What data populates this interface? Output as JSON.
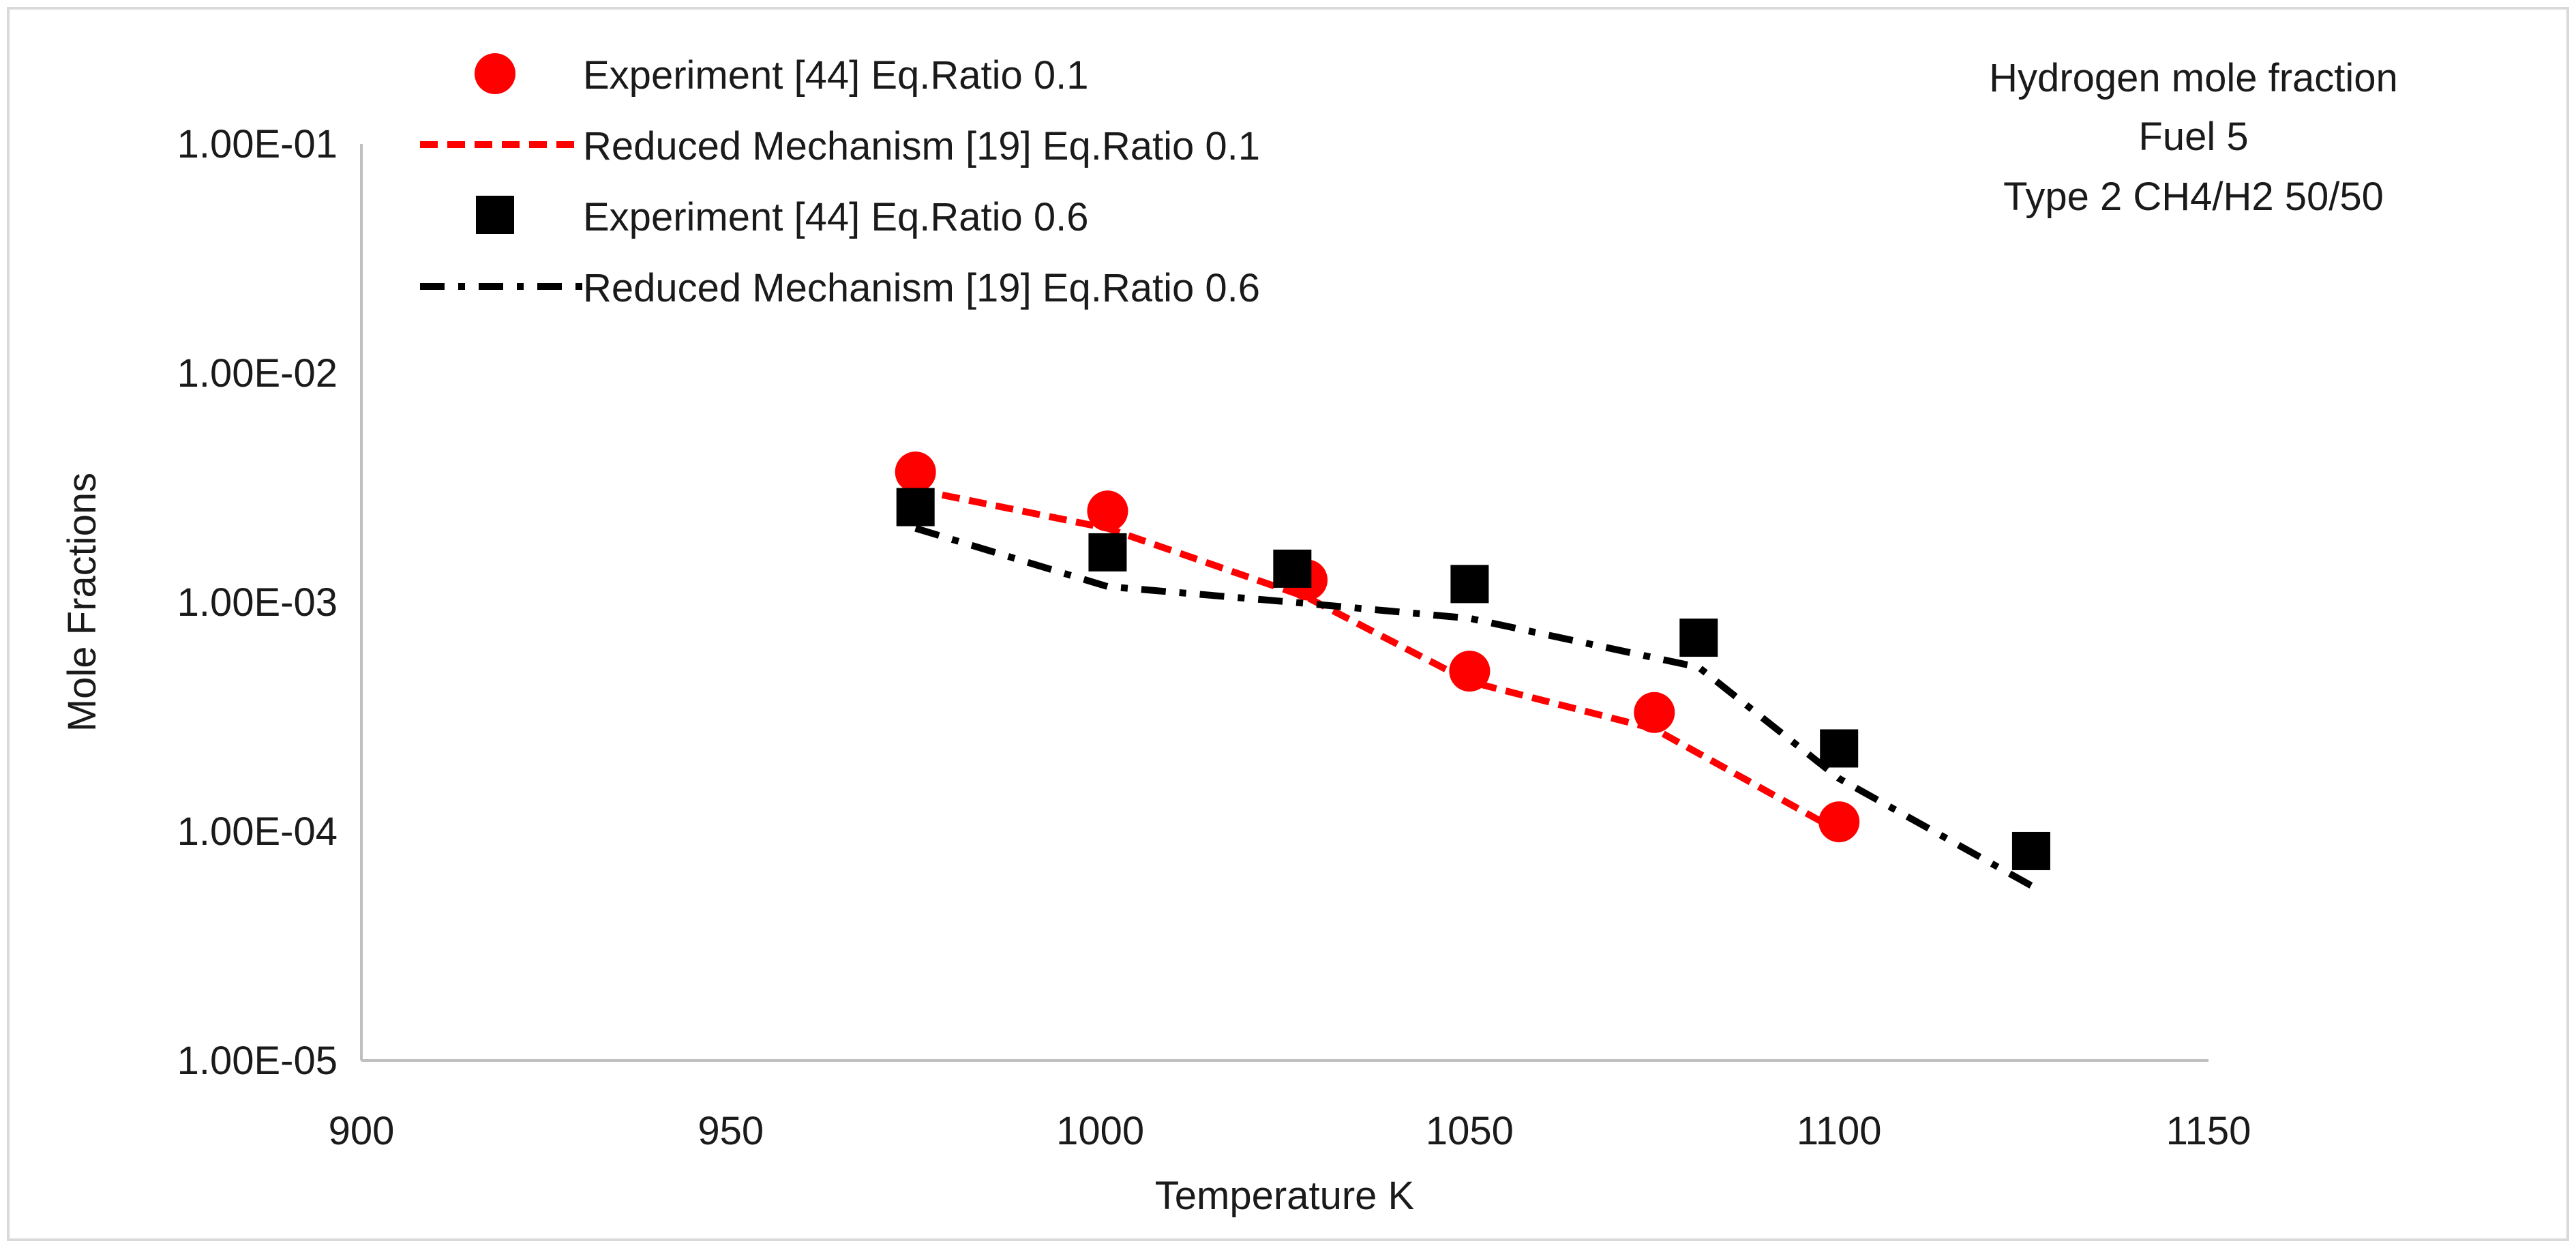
{
  "chart_data": {
    "type": "scatter",
    "title_lines": [
      "Hydrogen mole fraction",
      "Fuel 5",
      "Type 2 CH4/H2 50/50"
    ],
    "xlabel": "Temperature K",
    "ylabel": "Mole Fractions",
    "xlim": [
      900,
      1150
    ],
    "ylim": [
      1e-05,
      0.1
    ],
    "y_scale": "log",
    "x_ticks": [
      900,
      950,
      1000,
      1050,
      1100,
      1150
    ],
    "x_tick_labels": [
      "900",
      "950",
      "1000",
      "1050",
      "1100",
      "1150"
    ],
    "y_ticks": [
      0.1,
      0.01,
      0.001,
      0.0001,
      1e-05
    ],
    "y_tick_labels": [
      "1.00E-01",
      "1.00E-02",
      "1.00E-03",
      "1.00E-04",
      "1.00E-05"
    ],
    "grid": false,
    "legend_position": "top-left",
    "series": [
      {
        "name": "Experiment [44] Eq.Ratio 0.1",
        "kind": "marker-circle",
        "color": "#ff0000",
        "x": [
          975,
          1001,
          1028,
          1050,
          1075,
          1100
        ],
        "y": [
          0.0037,
          0.0025,
          0.00125,
          0.0005,
          0.00033,
          0.00011
        ]
      },
      {
        "name": "Reduced Mechanism [19] Eq.Ratio 0.1",
        "kind": "line-dashed",
        "color": "#ff0000",
        "x": [
          975,
          1001,
          1028,
          1050,
          1075,
          1100
        ],
        "y": [
          0.0031,
          0.0021,
          0.00105,
          0.00045,
          0.00028,
          0.0001
        ]
      },
      {
        "name": "Experiment [44] Eq.Ratio 0.6",
        "kind": "marker-square",
        "color": "#000000",
        "x": [
          975,
          1001,
          1026,
          1050,
          1081,
          1100,
          1126
        ],
        "y": [
          0.0026,
          0.00165,
          0.0014,
          0.0012,
          0.0007,
          0.00023,
          8.2e-05
        ]
      },
      {
        "name": "Reduced Mechanism [19] Eq.Ratio 0.6",
        "kind": "line-dashdot",
        "color": "#000000",
        "x": [
          975,
          1001,
          1026,
          1050,
          1081,
          1100,
          1126
        ],
        "y": [
          0.0021,
          0.00117,
          0.001,
          0.00085,
          0.00052,
          0.00017,
          5.8e-05
        ]
      }
    ]
  }
}
